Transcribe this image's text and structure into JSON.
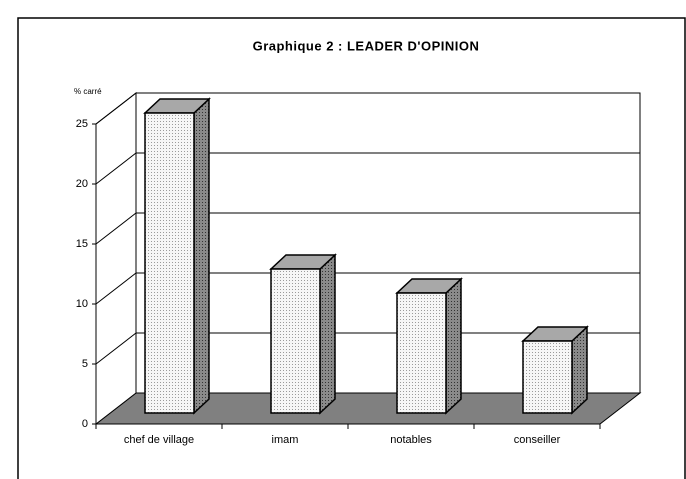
{
  "chart_data": {
    "type": "bar",
    "title": "Graphique 2 : LEADER D'OPINION",
    "y_axis_label": "% carré",
    "categories": [
      "chef de village",
      "imam",
      "notables",
      "conseiller"
    ],
    "values": [
      25,
      12,
      10,
      6
    ],
    "color": "#f4f4f4",
    "ylim": [
      0,
      25
    ],
    "yticks": [
      0,
      5,
      10,
      15,
      20,
      25
    ],
    "grid": true
  }
}
